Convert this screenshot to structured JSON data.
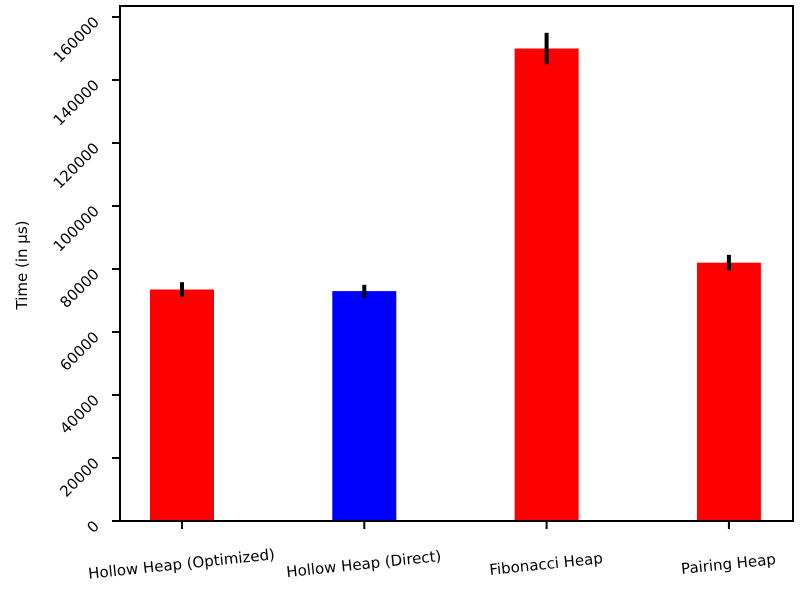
{
  "chart_data": {
    "type": "bar",
    "title": "",
    "xlabel": "",
    "ylabel": "Time (in µs)",
    "ylim": [
      0,
      163500
    ],
    "grid": false,
    "legend": "none",
    "categories": [
      "Hollow Heap (Optimized)",
      "Hollow Heap (Direct)",
      "Fibonacci Heap",
      "Pairing Heap"
    ],
    "values": [
      73500,
      73000,
      150000,
      82000
    ],
    "errors": [
      2300,
      2000,
      5000,
      2500
    ],
    "colors": [
      "#ff0000",
      "#0000ff",
      "#ff0000",
      "#ff0000"
    ],
    "yticks": [
      0,
      20000,
      40000,
      60000,
      80000,
      100000,
      120000,
      140000,
      160000
    ],
    "ytick_labels": [
      "0",
      "20000",
      "40000",
      "60000",
      "80000",
      "100000",
      "120000",
      "140000",
      "160000"
    ]
  }
}
